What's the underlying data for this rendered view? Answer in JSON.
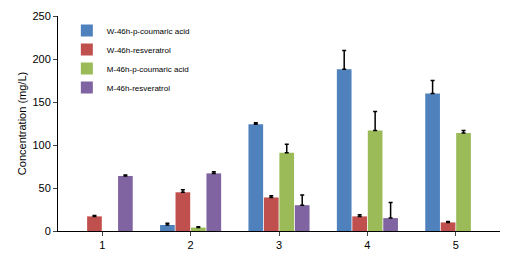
{
  "chart_data": {
    "type": "bar",
    "y_label": "Concentration (mg/L)",
    "categories": [
      "1",
      "2",
      "3",
      "4",
      "5"
    ],
    "series": [
      {
        "name": "W-46h-p-coumaric acid",
        "color": "#4f81bd",
        "values": [
          null,
          7,
          124,
          188,
          160
        ],
        "error": [
          null,
          2,
          2,
          22,
          15
        ]
      },
      {
        "name": "W-46h-resveratrol",
        "color": "#c0504d",
        "values": [
          17,
          45,
          39,
          17,
          10
        ],
        "error": [
          1,
          3,
          2,
          2,
          1
        ]
      },
      {
        "name": "M-46h-p-coumaric acid",
        "color": "#9bbb59",
        "values": [
          null,
          4,
          91,
          117,
          114
        ],
        "error": [
          null,
          1,
          10,
          22,
          3
        ]
      },
      {
        "name": "M-46h-resveratrol",
        "color": "#8064a2",
        "values": [
          64,
          67,
          30,
          15,
          null
        ],
        "error": [
          1,
          2,
          12,
          18,
          null
        ]
      }
    ],
    "ylim": [
      0,
      250
    ],
    "yticks": [
      0,
      50,
      100,
      150,
      200,
      250
    ],
    "grid": false,
    "legend": "upper left"
  }
}
